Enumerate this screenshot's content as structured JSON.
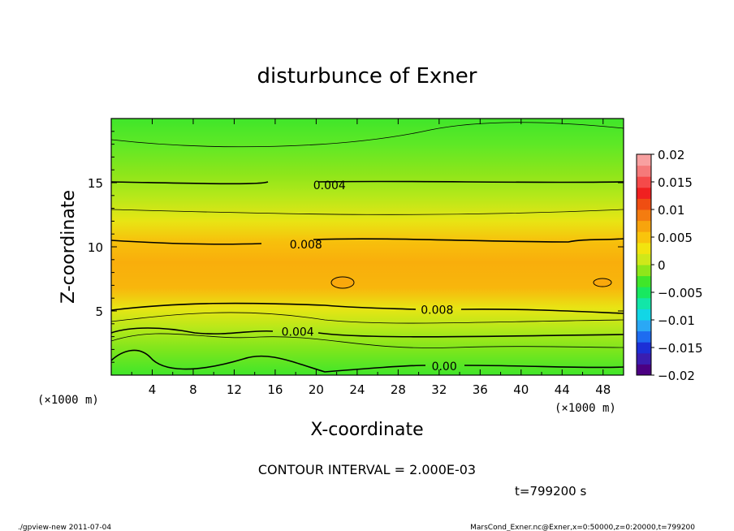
{
  "chart_data": {
    "type": "heatmap",
    "title": "disturbunce of Exner",
    "xlabel": "X-coordinate",
    "ylabel": "Z-coordinate",
    "x_unit_left": "(×1000 m)",
    "x_unit_right": "(×1000 m)",
    "xlim": [
      0,
      50
    ],
    "ylim": [
      0,
      20
    ],
    "x_ticks": [
      "4",
      "8",
      "12",
      "16",
      "20",
      "24",
      "28",
      "32",
      "36",
      "40",
      "44",
      "48"
    ],
    "y_ticks": [
      "5",
      "10",
      "15"
    ],
    "colorbar": {
      "labels": [
        "0.02",
        "0.015",
        "0.01",
        "0.005",
        "0",
        "−0.005",
        "−0.01",
        "−0.015",
        "−0.02"
      ],
      "range": [
        -0.02,
        0.02
      ],
      "colors": [
        "#4b0082",
        "#3a1db0",
        "#1c2fd6",
        "#1e6cf0",
        "#2aa8f5",
        "#12d6e6",
        "#12e6a8",
        "#18e860",
        "#40e62a",
        "#8fe61a",
        "#cfe81a",
        "#f2e40f",
        "#f9c40c",
        "#f7a40d",
        "#f47c10",
        "#ef4e12",
        "#f02020",
        "#f54a4a",
        "#f57a7a",
        "#f8a0a0"
      ]
    },
    "contour_labels": [
      {
        "text": "0.004",
        "x": 21.3,
        "y": 14.8
      },
      {
        "text": "0.008",
        "x": 19.0,
        "y": 10.2
      },
      {
        "text": "0.008",
        "x": 31.8,
        "y": 5.1
      },
      {
        "text": "0.004",
        "x": 18.2,
        "y": 3.4
      },
      {
        "text": "0.00",
        "x": 32.5,
        "y": 0.7
      }
    ],
    "contour_interval_text": "CONTOUR INTERVAL = 2.000E-03",
    "time_text": "t=799200 s"
  },
  "footer": {
    "left": "./gpview-new   2011-07-04",
    "right": "MarsCond_Exner.nc@Exner,x=0:50000,z=0:20000,t=799200"
  }
}
